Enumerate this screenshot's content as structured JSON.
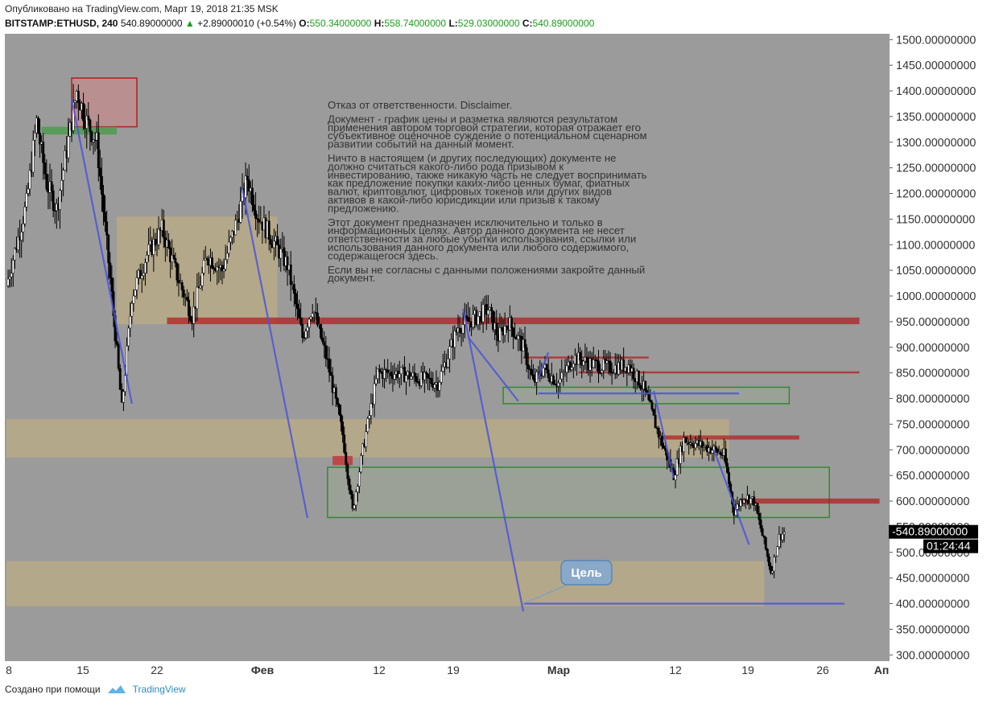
{
  "header": {
    "published": "Опубликовано на TradingView.com, Март 19, 2018 21:35 MSK",
    "symbol": "BITSTAMP:ETHUSD, 240",
    "last": "540.89000000",
    "change": "+2.89000010 (+0.54%)",
    "o_label": "O:",
    "o_value": "550.34000000",
    "h_label": "H:",
    "h_value": "558.74000000",
    "l_label": "L:",
    "l_value": "529.03000000",
    "c_label": "C:",
    "c_value": "540.89000000"
  },
  "footer": {
    "created_with": "Создано при помощи",
    "brand": "TradingView"
  },
  "disclaimer": [
    "Отказ от ответственности. Disclaimer.",
    "",
    "Документ - график цены и разметка являются результатом",
    "применения автором торговой стратегии, которая отражает его",
    "субъективное оценочное суждение о потенциальном сценарном",
    "развитии событий на данный момент.",
    "",
    "Ничто в настоящем (и других последующих) документе не",
    "должно считаться какого-либо рода призывом к",
    "инвестированию, также никакую часть не следует воспринимать",
    "как предложение покупки каких-либо ценных бумаг, фиатных",
    "валют, криптовалют, цифровых токенов или других видов",
    "активов в какой-либо юрисдикции или призыв к такому",
    "предложению.",
    "",
    "Этот документ предназначен исключительно и только в",
    "информационных целях. Автор данного документа не несет",
    "ответственности за любые убытки использования, ссылки или",
    "использования данного документа или любого содержимого,",
    "содержащегося здесь.",
    "",
    "Если вы не согласны с данными положениями закройте данный",
    "документ."
  ],
  "annotation_label": "Цель",
  "price_tag": "540.89000000",
  "countdown": "01:24:44",
  "colors": {
    "plot_bg": "#9b9b9b",
    "candle_up": "#ffffff",
    "candle_down": "#000000",
    "zone_tan": "#c9b27c",
    "zone_green": "#2f8a2f",
    "line_red": "#b02020",
    "trend_blue": "#4b55d8"
  },
  "chart_data": {
    "type": "candlestick",
    "symbol": "BITSTAMP:ETHUSD",
    "timeframe": "240",
    "ylim": [
      300,
      1500
    ],
    "y_ticks": [
      "1500.00000000",
      "1450.00000000",
      "1400.00000000",
      "1350.00000000",
      "1300.00000000",
      "1250.00000000",
      "1200.00000000",
      "1150.00000000",
      "1100.00000000",
      "1050.00000000",
      "1000.00000000",
      "950.00000000",
      "900.00000000",
      "850.00000000",
      "800.00000000",
      "750.00000000",
      "700.00000000",
      "650.00000000",
      "600.00000000",
      "550.00000000",
      "500.00000000",
      "450.00000000",
      "400.00000000",
      "350.00000000",
      "300.00000000"
    ],
    "x_ticks": [
      "8",
      "15",
      "22",
      "Фев",
      "12",
      "19",
      "Мар",
      "12",
      "19",
      "26",
      "Ап"
    ],
    "price_path": [
      {
        "d": 0,
        "p": 1020
      },
      {
        "d": 2,
        "p": 1180
      },
      {
        "d": 3,
        "p": 1340
      },
      {
        "d": 4,
        "p": 1220
      },
      {
        "d": 5,
        "p": 1170
      },
      {
        "d": 7,
        "p": 1400
      },
      {
        "d": 8,
        "p": 1340
      },
      {
        "d": 9,
        "p": 1300
      },
      {
        "d": 10.5,
        "p": 1000
      },
      {
        "d": 11.5,
        "p": 780
      },
      {
        "d": 12.5,
        "p": 1000
      },
      {
        "d": 14,
        "p": 1080
      },
      {
        "d": 15.5,
        "p": 1130
      },
      {
        "d": 17,
        "p": 1040
      },
      {
        "d": 18.5,
        "p": 960
      },
      {
        "d": 20,
        "p": 1080
      },
      {
        "d": 21.5,
        "p": 1050
      },
      {
        "d": 23,
        "p": 1150
      },
      {
        "d": 24,
        "p": 1230
      },
      {
        "d": 25,
        "p": 1160
      },
      {
        "d": 26.5,
        "p": 1110
      },
      {
        "d": 28,
        "p": 1060
      },
      {
        "d": 29.5,
        "p": 920
      },
      {
        "d": 30.5,
        "p": 980
      },
      {
        "d": 32,
        "p": 870
      },
      {
        "d": 33.5,
        "p": 730
      },
      {
        "d": 34.5,
        "p": 580
      },
      {
        "d": 35.5,
        "p": 700
      },
      {
        "d": 37,
        "p": 850
      },
      {
        "d": 39,
        "p": 850
      },
      {
        "d": 41,
        "p": 840
      },
      {
        "d": 43,
        "p": 830
      },
      {
        "d": 45,
        "p": 940
      },
      {
        "d": 47,
        "p": 960
      },
      {
        "d": 48,
        "p": 975
      },
      {
        "d": 49,
        "p": 920
      },
      {
        "d": 50,
        "p": 950
      },
      {
        "d": 51.5,
        "p": 900
      },
      {
        "d": 52.5,
        "p": 830
      },
      {
        "d": 53.5,
        "p": 860
      },
      {
        "d": 55,
        "p": 830
      },
      {
        "d": 56.5,
        "p": 880
      },
      {
        "d": 58,
        "p": 870
      },
      {
        "d": 60,
        "p": 860
      },
      {
        "d": 62,
        "p": 865
      },
      {
        "d": 63.5,
        "p": 820
      },
      {
        "d": 65,
        "p": 730
      },
      {
        "d": 66.5,
        "p": 650
      },
      {
        "d": 67.5,
        "p": 720
      },
      {
        "d": 69,
        "p": 710
      },
      {
        "d": 70.5,
        "p": 700
      },
      {
        "d": 71.5,
        "p": 690
      },
      {
        "d": 72.5,
        "p": 580
      },
      {
        "d": 73.5,
        "p": 610
      },
      {
        "d": 74.5,
        "p": 600
      },
      {
        "d": 75.5,
        "p": 520
      },
      {
        "d": 76.2,
        "p": 460
      },
      {
        "d": 77,
        "p": 530
      },
      {
        "d": 77.6,
        "p": 541
      }
    ],
    "zones": [
      {
        "kind": "resistance-box",
        "p1": 1330,
        "p2": 1425,
        "d1": 6.5,
        "d2": 13
      },
      {
        "kind": "support-line",
        "p1": 1315,
        "p2": 1330,
        "d1": 3.5,
        "d2": 11
      },
      {
        "kind": "range",
        "p1": 945,
        "p2": 1155,
        "d1": 11,
        "d2": 27
      },
      {
        "kind": "range",
        "p1": 685,
        "p2": 760,
        "d1": 0,
        "d2": 72
      },
      {
        "kind": "range",
        "p1": 395,
        "p2": 483,
        "d1": 0,
        "d2": 75.5
      },
      {
        "kind": "range-green",
        "p1": 568,
        "p2": 666,
        "d1": 32,
        "d2": 82
      },
      {
        "kind": "range-green",
        "p1": 790,
        "p2": 822,
        "d1": 49.5,
        "d2": 78
      },
      {
        "kind": "resistance-line",
        "p1": 945,
        "p2": 958,
        "d1": 16,
        "d2": 85
      },
      {
        "kind": "resistance-line",
        "p1": 878,
        "p2": 882,
        "d1": 51.5,
        "d2": 64
      },
      {
        "kind": "resistance-line",
        "p1": 849,
        "p2": 853,
        "d1": 57,
        "d2": 85
      },
      {
        "kind": "resistance-line",
        "p1": 720,
        "p2": 728,
        "d1": 65,
        "d2": 79
      },
      {
        "kind": "resistance-line",
        "p1": 595,
        "p2": 605,
        "d1": 73,
        "d2": 87
      },
      {
        "kind": "small-red",
        "p1": 670,
        "p2": 688,
        "d1": 32.5,
        "d2": 34.5
      }
    ],
    "trendlines": [
      {
        "d1": 6.5,
        "p1": 1385,
        "d2": 12.5,
        "p2": 790
      },
      {
        "d1": 23.5,
        "p1": 1210,
        "d2": 30,
        "p2": 567
      },
      {
        "d1": 45.5,
        "p1": 975,
        "d2": 51.5,
        "p2": 385
      },
      {
        "d1": 46,
        "p1": 920,
        "d2": 51,
        "p2": 795
      },
      {
        "d1": 53,
        "p1": 810,
        "d2": 73,
        "p2": 810
      },
      {
        "d1": 53,
        "p1": 840,
        "d2": 54,
        "p2": 890
      },
      {
        "d1": 64.5,
        "p1": 815,
        "d2": 66.5,
        "p2": 645
      },
      {
        "d1": 70.5,
        "p1": 700,
        "d2": 74,
        "p2": 515
      },
      {
        "d1": 51.5,
        "p1": 400,
        "d2": 83.5,
        "p2": 400
      }
    ],
    "target_price": 400,
    "last_price": 540.89
  }
}
